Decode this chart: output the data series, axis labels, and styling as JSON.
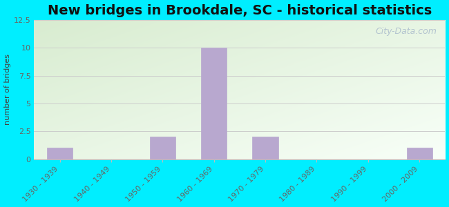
{
  "title": "New bridges in Brookdale, SC - historical statistics",
  "ylabel": "number of bridges",
  "categories": [
    "1930 - 1939",
    "1940 - 1949",
    "1950 - 1959",
    "1960 - 1969",
    "1970 - 1979",
    "1980 - 1989",
    "1990 - 1999",
    "2000 - 2009"
  ],
  "values": [
    1,
    0,
    2,
    10,
    2,
    0,
    0,
    1
  ],
  "bar_color": "#b8a8cf",
  "bar_edge_color": "#b8a8cf",
  "ylim": [
    0,
    12.5
  ],
  "yticks": [
    0,
    2.5,
    5,
    7.5,
    10,
    12.5
  ],
  "background_outer": "#00eeff",
  "plot_bg_color_topleft": "#d8ecd0",
  "plot_bg_color_bottomright": "#f8fff8",
  "grid_color": "#cccccc",
  "title_fontsize": 14,
  "axis_label_fontsize": 8,
  "tick_label_fontsize": 8,
  "tick_label_color": "#666666",
  "ylabel_color": "#444444",
  "title_color": "#111111",
  "watermark_text": "City-Data.com",
  "watermark_color": "#aabbcc",
  "watermark_fontsize": 9
}
